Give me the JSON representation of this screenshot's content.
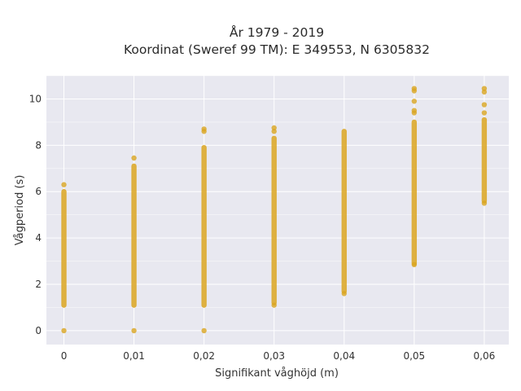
{
  "chart_data": {
    "type": "scatter",
    "title_lines": [
      "År 1979 - 2019",
      "Koordinat (Sweref 99 TM): E 349553, N 6305832"
    ],
    "xlabel": "Signifikant våghöjd (m)",
    "ylabel": "Vågperiod (s)",
    "x_ticks": [
      0,
      0.01,
      0.02,
      0.03,
      0.04,
      0.05,
      0.06
    ],
    "x_tick_labels": [
      "0",
      "0,01",
      "0,02",
      "0,03",
      "0,04",
      "0,05",
      "0,06"
    ],
    "y_ticks": [
      0,
      2,
      4,
      6,
      8,
      10
    ],
    "y_tick_labels": [
      "0",
      "2",
      "4",
      "6",
      "8",
      "10"
    ],
    "xlim": [
      -0.0025,
      0.0635
    ],
    "ylim": [
      -0.6,
      11.0
    ],
    "grid": true,
    "marker_color": "#DAA520",
    "background_color": "#E8E8F0",
    "columns": [
      {
        "x": 0.0,
        "ranges": [
          [
            1.1,
            6.0
          ]
        ],
        "points": [
          0,
          6.3
        ]
      },
      {
        "x": 0.01,
        "ranges": [
          [
            1.1,
            7.1
          ]
        ],
        "points": [
          0,
          7.45
        ]
      },
      {
        "x": 0.02,
        "ranges": [
          [
            1.1,
            7.9
          ]
        ],
        "points": [
          0,
          8.6,
          8.7
        ]
      },
      {
        "x": 0.03,
        "ranges": [
          [
            1.2,
            8.3
          ]
        ],
        "points": [
          1.1,
          8.6,
          8.75
        ]
      },
      {
        "x": 0.04,
        "ranges": [
          [
            1.7,
            8.6
          ]
        ],
        "points": [
          1.6
        ]
      },
      {
        "x": 0.05,
        "ranges": [
          [
            2.9,
            9.0
          ]
        ],
        "points": [
          2.85,
          9.4,
          9.5,
          9.9,
          10.35,
          10.45
        ]
      },
      {
        "x": 0.06,
        "ranges": [
          [
            5.6,
            9.1
          ]
        ],
        "points": [
          5.5,
          9.4,
          9.75,
          10.3,
          10.45
        ]
      }
    ]
  }
}
